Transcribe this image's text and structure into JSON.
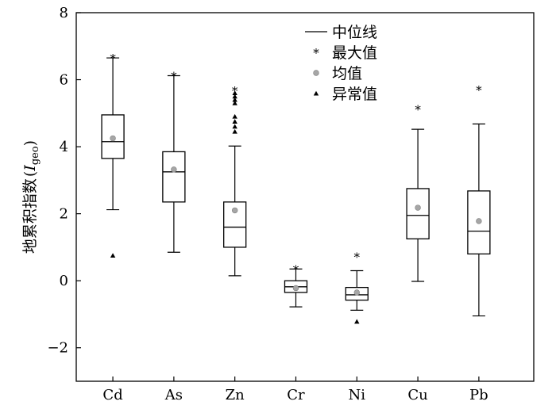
{
  "chart_data": {
    "type": "boxplot",
    "ylabel": "地累积指数",
    "ylabel_symbol": "I",
    "ylabel_subscript": "geo",
    "ylim": [
      -3,
      8
    ],
    "yticks": [
      -2,
      0,
      2,
      4,
      6,
      8
    ],
    "ytick_labels": [
      "−2",
      "0",
      "2",
      "4",
      "6",
      "8"
    ],
    "categories": [
      "Cd",
      "As",
      "Zn",
      "Cr",
      "Ni",
      "Cu",
      "Pb"
    ],
    "boxes": [
      {
        "name": "Cd",
        "whisker_low": 2.12,
        "q1": 3.65,
        "median": 4.15,
        "q3": 4.95,
        "whisker_high": 6.65,
        "mean": 4.25,
        "max": 6.65,
        "outliers": [
          0.75
        ]
      },
      {
        "name": "As",
        "whisker_low": 0.85,
        "q1": 2.35,
        "median": 3.25,
        "q3": 3.85,
        "whisker_high": 6.12,
        "mean": 3.32,
        "max": 6.12,
        "outliers": []
      },
      {
        "name": "Zn",
        "whisker_low": 0.15,
        "q1": 1.0,
        "median": 1.6,
        "q3": 2.35,
        "whisker_high": 4.02,
        "mean": 2.1,
        "max": 5.68,
        "outliers": [
          4.45,
          4.6,
          4.75,
          4.9,
          5.3,
          5.4,
          5.5,
          5.6
        ]
      },
      {
        "name": "Cr",
        "whisker_low": -0.78,
        "q1": -0.35,
        "median": -0.18,
        "q3": 0.0,
        "whisker_high": 0.35,
        "mean": -0.22,
        "max": 0.35,
        "outliers": []
      },
      {
        "name": "Ni",
        "whisker_low": -0.88,
        "q1": -0.58,
        "median": -0.42,
        "q3": -0.2,
        "whisker_high": 0.3,
        "mean": -0.35,
        "max": 0.72,
        "outliers": [
          -1.22
        ]
      },
      {
        "name": "Cu",
        "whisker_low": -0.02,
        "q1": 1.25,
        "median": 1.95,
        "q3": 2.75,
        "whisker_high": 4.52,
        "mean": 2.18,
        "max": 5.12,
        "outliers": []
      },
      {
        "name": "Pb",
        "whisker_low": -1.05,
        "q1": 0.8,
        "median": 1.48,
        "q3": 2.68,
        "whisker_high": 4.68,
        "mean": 1.78,
        "max": 5.7,
        "outliers": []
      }
    ],
    "legend": {
      "position": "top-center",
      "entries": [
        {
          "key": "median",
          "label": "中位线"
        },
        {
          "key": "max",
          "label": "最大值"
        },
        {
          "key": "mean",
          "label": "均值"
        },
        {
          "key": "outlier",
          "label": "异常值"
        }
      ]
    },
    "colors": {
      "box": "#000000",
      "mean": "#a6a6a6",
      "markers": "#000000"
    },
    "grid": false
  }
}
